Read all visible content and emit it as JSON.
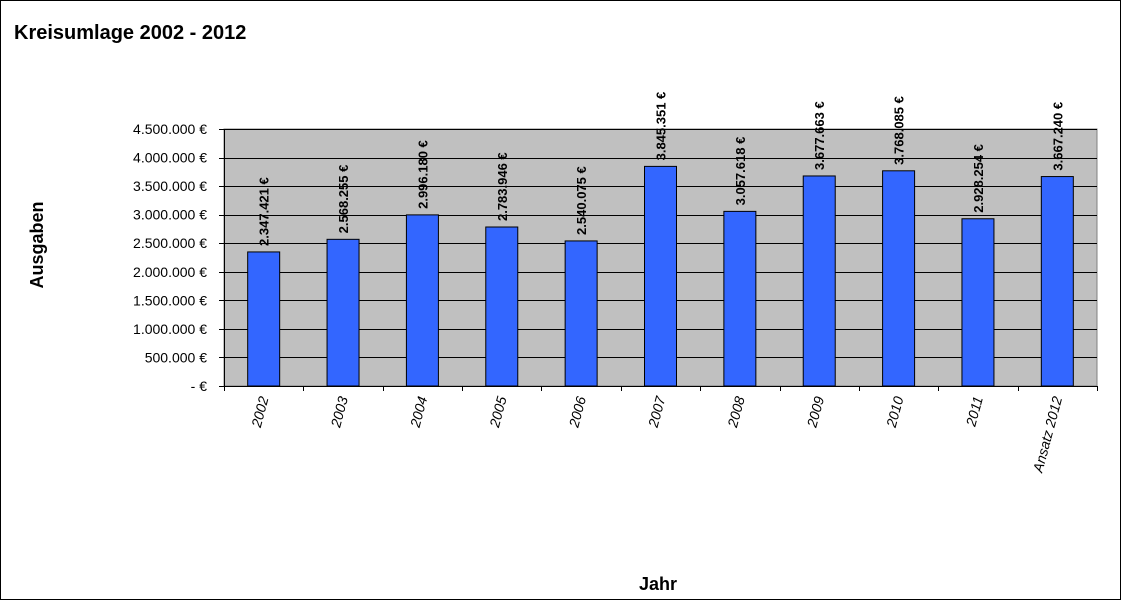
{
  "chart_data": {
    "type": "bar",
    "title": "Kreisumlage 2002 - 2012",
    "xlabel": "Jahr",
    "ylabel": "Ausgaben",
    "categories": [
      "2002",
      "2003",
      "2004",
      "2005",
      "2006",
      "2007",
      "2008",
      "2009",
      "2010",
      "2011",
      "Ansatz 2012"
    ],
    "values": [
      2347421,
      2568255,
      2996180,
      2783946,
      2540075,
      3845351,
      3057618,
      3677663,
      3768085,
      2928254,
      3667240
    ],
    "data_labels": [
      "2.347.421 €",
      "2.568.255 €",
      "2.996.180 €",
      "2.783.946 €",
      "2.540.075 €",
      "3.845.351 €",
      "3.057.618 €",
      "3.677.663 €",
      "3.768.085 €",
      "2.928.254 €",
      "3.667.240 €"
    ],
    "ylim": [
      0,
      4500000
    ],
    "yticks": [
      0,
      500000,
      1000000,
      1500000,
      2000000,
      2500000,
      3000000,
      3500000,
      4000000,
      4500000
    ],
    "ytick_labels": [
      "-   €",
      "500.000 €",
      "1.000.000 €",
      "1.500.000 €",
      "2.000.000 €",
      "2.500.000 €",
      "3.000.000 €",
      "3.500.000 €",
      "4.000.000 €",
      "4.500.000 €"
    ],
    "grid": true,
    "colors": {
      "bar": "#3366FF",
      "plot_background": "#C0C0C0",
      "gridline": "#000000"
    }
  }
}
